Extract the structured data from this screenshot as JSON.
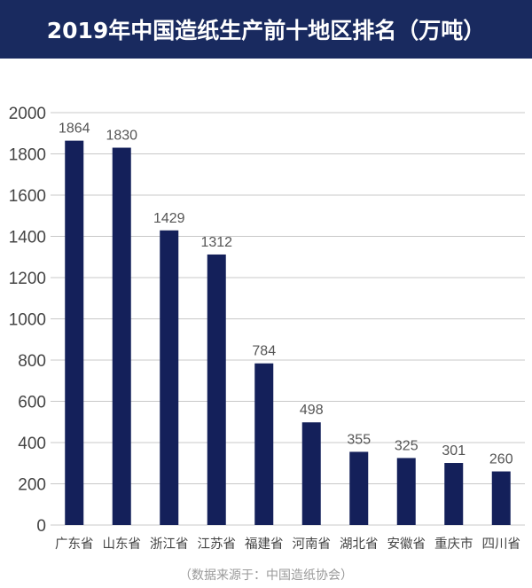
{
  "chart_data": {
    "type": "bar",
    "title": "2019年中国造纸生产前十地区排名（万吨）",
    "categories": [
      "广东省",
      "山东省",
      "浙江省",
      "江苏省",
      "福建省",
      "河南省",
      "湖北省",
      "安徽省",
      "重庆市",
      "四川省"
    ],
    "values": [
      1864,
      1830,
      1429,
      1312,
      784,
      498,
      355,
      325,
      301,
      260
    ],
    "ylim": [
      0,
      2000
    ],
    "yticks": [
      0,
      200,
      400,
      600,
      800,
      1000,
      1200,
      1400,
      1600,
      1800,
      2000
    ],
    "grid": true,
    "bar_color": "#14205a",
    "source": "（数据来源于：中国造纸协会）"
  }
}
